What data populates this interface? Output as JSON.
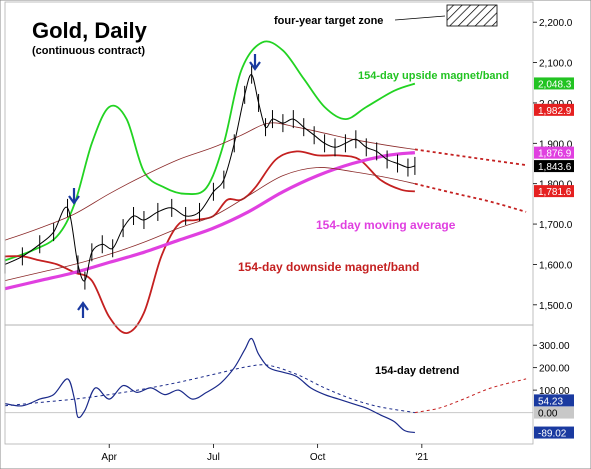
{
  "chart_data": [
    {
      "type": "line",
      "title": "Gold, Daily",
      "subtitle": "(continuous contract)",
      "x_tick_labels": [
        "Apr",
        "Jul",
        "Oct",
        "'21"
      ],
      "x_tick_months": [
        3,
        6,
        9,
        12
      ],
      "ylim": [
        1450,
        2250
      ],
      "y_tick_values": [
        1500,
        1600,
        1700,
        1800,
        1900,
        2000,
        2100,
        2200
      ],
      "y_tick_labels": [
        "1,500.0",
        "1,600.0",
        "1,700.0",
        "1,800.0",
        "1,900.0",
        "2,000.0",
        "2,100.0",
        "2,200.0"
      ],
      "price_badges": [
        {
          "label": "2,048.3",
          "value": 2048.3,
          "color": "#22c322"
        },
        {
          "label": "1,982.9",
          "value": 1982.9,
          "color": "#e52020"
        },
        {
          "label": "1,876.9",
          "value": 1876.9,
          "color": "#e040e0"
        },
        {
          "label": "1,843.6",
          "value": 1843.6,
          "color": "#000000"
        },
        {
          "label": "1,781.6",
          "value": 1781.6,
          "color": "#e52020"
        }
      ],
      "annotations": [
        {
          "text": "four-year target zone",
          "color": "#000000"
        },
        {
          "text": "154-day upside magnet/band",
          "color": "#22c322"
        },
        {
          "text": "154-day moving average",
          "color": "#e040e0"
        },
        {
          "text": "154-day downside magnet/band",
          "color": "#c42020"
        }
      ],
      "series": [
        {
          "name": "154-day upside magnet/band",
          "color": "#22d322",
          "points": [
            [
              0,
              1610
            ],
            [
              0.8,
              1635
            ],
            [
              1.5,
              1670
            ],
            [
              2.0,
              1750
            ],
            [
              2.5,
              1900
            ],
            [
              3.0,
              1990
            ],
            [
              3.5,
              1960
            ],
            [
              4.0,
              1830
            ],
            [
              4.6,
              1790
            ],
            [
              5.2,
              1775
            ],
            [
              5.8,
              1790
            ],
            [
              6.3,
              1900
            ],
            [
              6.8,
              2080
            ],
            [
              7.4,
              2150
            ],
            [
              8.0,
              2130
            ],
            [
              8.6,
              2060
            ],
            [
              9.2,
              1990
            ],
            [
              9.8,
              1960
            ],
            [
              10.4,
              1990
            ],
            [
              11.2,
              2030
            ],
            [
              11.8,
              2048
            ]
          ]
        },
        {
          "name": "154-day downside magnet/band",
          "color": "#c42020",
          "points": [
            [
              0,
              1620
            ],
            [
              0.5,
              1620
            ],
            [
              1.0,
              1610
            ],
            [
              1.5,
              1600
            ],
            [
              2.0,
              1580
            ],
            [
              2.5,
              1560
            ],
            [
              3.0,
              1470
            ],
            [
              3.5,
              1430
            ],
            [
              4.0,
              1480
            ],
            [
              4.5,
              1620
            ],
            [
              5.0,
              1700
            ],
            [
              5.5,
              1710
            ],
            [
              6.0,
              1720
            ],
            [
              6.4,
              1760
            ],
            [
              6.8,
              1760
            ],
            [
              7.2,
              1790
            ],
            [
              7.8,
              1860
            ],
            [
              8.4,
              1880
            ],
            [
              9.0,
              1870
            ],
            [
              9.6,
              1870
            ],
            [
              10.2,
              1860
            ],
            [
              10.8,
              1810
            ],
            [
              11.4,
              1785
            ],
            [
              11.8,
              1781
            ]
          ]
        },
        {
          "name": "154-day moving average",
          "color": "#e040e0",
          "points": [
            [
              0,
              1540
            ],
            [
              1.0,
              1560
            ],
            [
              2.0,
              1580
            ],
            [
              3.0,
              1605
            ],
            [
              4.0,
              1630
            ],
            [
              5.0,
              1660
            ],
            [
              6.0,
              1690
            ],
            [
              7.0,
              1730
            ],
            [
              8.0,
              1780
            ],
            [
              9.0,
              1820
            ],
            [
              10.0,
              1850
            ],
            [
              11.0,
              1870
            ],
            [
              11.8,
              1877
            ]
          ]
        },
        {
          "name": "upper band",
          "color": "#8b2a2a",
          "points": [
            [
              0,
              1660
            ],
            [
              1.0,
              1690
            ],
            [
              2.0,
              1725
            ],
            [
              3.0,
              1775
            ],
            [
              4.0,
              1820
            ],
            [
              5.0,
              1860
            ],
            [
              6.0,
              1890
            ],
            [
              6.8,
              1920
            ],
            [
              7.6,
              1950
            ],
            [
              8.4,
              1940
            ],
            [
              9.2,
              1925
            ],
            [
              10.0,
              1910
            ],
            [
              11.0,
              1895
            ],
            [
              11.8,
              1885
            ]
          ]
        },
        {
          "name": "lower band",
          "color": "#8b2a2a",
          "points": [
            [
              0,
              1560
            ],
            [
              1.0,
              1580
            ],
            [
              2.0,
              1600
            ],
            [
              3.0,
              1625
            ],
            [
              4.0,
              1655
            ],
            [
              5.0,
              1690
            ],
            [
              6.0,
              1720
            ],
            [
              7.0,
              1770
            ],
            [
              8.0,
              1820
            ],
            [
              9.0,
              1840
            ],
            [
              10.0,
              1830
            ],
            [
              11.0,
              1815
            ],
            [
              11.8,
              1800
            ]
          ]
        },
        {
          "name": "projected upper band",
          "color": "#c42020",
          "dashed": true,
          "points": [
            [
              11.8,
              1885
            ],
            [
              13.0,
              1870
            ],
            [
              14.0,
              1858
            ],
            [
              15.0,
              1846
            ]
          ]
        },
        {
          "name": "projected lower band",
          "color": "#c42020",
          "dashed": true,
          "points": [
            [
              11.8,
              1800
            ],
            [
              13.0,
              1775
            ],
            [
              14.0,
              1755
            ],
            [
              15.0,
              1730
            ]
          ]
        },
        {
          "name": "price",
          "color": "#000000",
          "points": [
            [
              0,
              1600
            ],
            [
              0.5,
              1620
            ],
            [
              1.0,
              1650
            ],
            [
              1.4,
              1680
            ],
            [
              1.8,
              1740
            ],
            [
              2.1,
              1600
            ],
            [
              2.3,
              1560
            ],
            [
              2.5,
              1630
            ],
            [
              2.8,
              1650
            ],
            [
              3.1,
              1640
            ],
            [
              3.4,
              1690
            ],
            [
              3.7,
              1720
            ],
            [
              4.0,
              1710
            ],
            [
              4.4,
              1730
            ],
            [
              4.8,
              1740
            ],
            [
              5.2,
              1720
            ],
            [
              5.6,
              1730
            ],
            [
              6.0,
              1780
            ],
            [
              6.3,
              1810
            ],
            [
              6.6,
              1900
            ],
            [
              6.9,
              2020
            ],
            [
              7.1,
              2070
            ],
            [
              7.3,
              2000
            ],
            [
              7.5,
              1940
            ],
            [
              7.7,
              1960
            ],
            [
              8.0,
              1950
            ],
            [
              8.3,
              1960
            ],
            [
              8.6,
              1940
            ],
            [
              8.9,
              1920
            ],
            [
              9.2,
              1900
            ],
            [
              9.5,
              1890
            ],
            [
              9.8,
              1900
            ],
            [
              10.1,
              1910
            ],
            [
              10.4,
              1890
            ],
            [
              10.7,
              1880
            ],
            [
              11.0,
              1860
            ],
            [
              11.3,
              1850
            ],
            [
              11.6,
              1840
            ],
            [
              11.8,
              1844
            ]
          ]
        }
      ]
    },
    {
      "type": "line",
      "title": "154-day detrend",
      "ylim": [
        -140,
        390
      ],
      "y_tick_values": [
        300,
        200,
        100
      ],
      "y_tick_labels": [
        "300.00",
        "200.00",
        "100.00"
      ],
      "value_badges": [
        {
          "label": "54.23",
          "value": 54.23,
          "color": "#1a3aa0"
        },
        {
          "label": "0.00",
          "value": 0,
          "color": "#c8c8c8"
        },
        {
          "label": "-89.02",
          "value": -89.02,
          "color": "#1a3aa0"
        }
      ],
      "series": [
        {
          "name": "detrend",
          "color": "#1a2a8a",
          "points": [
            [
              0,
              40
            ],
            [
              0.5,
              30
            ],
            [
              1.0,
              60
            ],
            [
              1.4,
              80
            ],
            [
              1.8,
              150
            ],
            [
              2.0,
              60
            ],
            [
              2.1,
              -20
            ],
            [
              2.3,
              10
            ],
            [
              2.6,
              110
            ],
            [
              3.0,
              60
            ],
            [
              3.4,
              120
            ],
            [
              3.8,
              90
            ],
            [
              4.2,
              110
            ],
            [
              4.6,
              80
            ],
            [
              5.0,
              100
            ],
            [
              5.4,
              60
            ],
            [
              5.8,
              90
            ],
            [
              6.2,
              130
            ],
            [
              6.6,
              200
            ],
            [
              6.9,
              280
            ],
            [
              7.1,
              330
            ],
            [
              7.3,
              260
            ],
            [
              7.6,
              200
            ],
            [
              8.0,
              180
            ],
            [
              8.4,
              160
            ],
            [
              8.8,
              110
            ],
            [
              9.2,
              80
            ],
            [
              9.6,
              60
            ],
            [
              10.0,
              40
            ],
            [
              10.4,
              20
            ],
            [
              10.8,
              -10
            ],
            [
              11.2,
              -40
            ],
            [
              11.5,
              -80
            ],
            [
              11.8,
              -89
            ]
          ]
        },
        {
          "name": "detrend average",
          "color": "#1a2a8a",
          "dashed": true,
          "points": [
            [
              0,
              30
            ],
            [
              1.0,
              45
            ],
            [
              2.0,
              60
            ],
            [
              3.0,
              80
            ],
            [
              4.0,
              105
            ],
            [
              5.0,
              135
            ],
            [
              6.0,
              170
            ],
            [
              7.0,
              205
            ],
            [
              7.6,
              210
            ],
            [
              8.4,
              170
            ],
            [
              9.2,
              110
            ],
            [
              10.0,
              60
            ],
            [
              10.8,
              25
            ],
            [
              11.8,
              0
            ]
          ]
        },
        {
          "name": "projected detrend",
          "color": "#c42020",
          "dashed": true,
          "points": [
            [
              11.8,
              0
            ],
            [
              12.5,
              20
            ],
            [
              13.2,
              60
            ],
            [
              14.0,
              110
            ],
            [
              15.0,
              150
            ]
          ]
        }
      ]
    }
  ]
}
